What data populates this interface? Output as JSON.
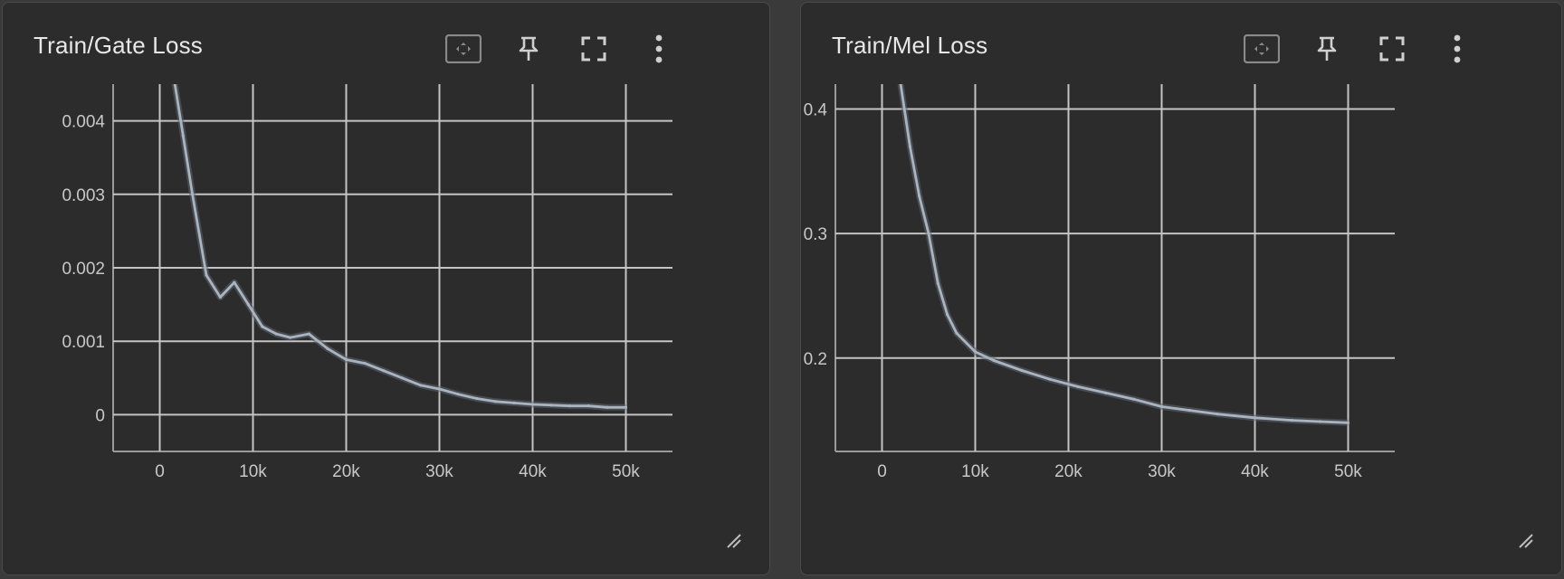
{
  "colors": {
    "background": "#3a3a3a",
    "card": "#2c2c2c",
    "grid": "#c4c4c4",
    "axis": "#9a9a9a",
    "smoothed_line": "#aab4c0",
    "raw_line": "#5f6670",
    "tick_text": "#c8c8c8"
  },
  "toolbar_icons": [
    "fit-domain-icon",
    "pin-icon",
    "fullscreen-icon",
    "more-vert-icon"
  ],
  "chart_data": [
    {
      "type": "line",
      "title": "Train/Gate Loss",
      "xlabel": "",
      "ylabel": "",
      "xlim": [
        -5000,
        55000
      ],
      "ylim": [
        -0.0005,
        0.0045
      ],
      "x_ticks": [
        0,
        10000,
        20000,
        30000,
        40000,
        50000
      ],
      "x_tick_labels": [
        "0",
        "10k",
        "20k",
        "30k",
        "40k",
        "50k"
      ],
      "y_ticks": [
        0,
        0.001,
        0.002,
        0.003,
        0.004
      ],
      "y_tick_labels": [
        "0",
        "0.001",
        "0.002",
        "0.003",
        "0.004"
      ],
      "grid": true,
      "series": [
        {
          "x": [
            1500,
            2500,
            3500,
            5000,
            6500,
            8000,
            9500,
            11000,
            12500,
            14000,
            16000,
            18000,
            20000,
            22000,
            24000,
            26000,
            28000,
            30000,
            32000,
            34000,
            36000,
            38000,
            40000,
            42000,
            44000,
            46000,
            48000,
            50000
          ],
          "y": [
            0.0046,
            0.0038,
            0.003,
            0.0019,
            0.0016,
            0.0018,
            0.0015,
            0.0012,
            0.0011,
            0.00105,
            0.0011,
            0.0009,
            0.00075,
            0.0007,
            0.0006,
            0.0005,
            0.0004,
            0.00035,
            0.00028,
            0.00022,
            0.00018,
            0.00016,
            0.00014,
            0.00013,
            0.00012,
            0.00012,
            0.0001,
            0.0001
          ]
        }
      ]
    },
    {
      "type": "line",
      "title": "Train/Mel Loss",
      "xlabel": "",
      "ylabel": "",
      "xlim": [
        -5000,
        55000
      ],
      "ylim": [
        0.125,
        0.42
      ],
      "x_ticks": [
        0,
        10000,
        20000,
        30000,
        40000,
        50000
      ],
      "x_tick_labels": [
        "0",
        "10k",
        "20k",
        "30k",
        "40k",
        "50k"
      ],
      "y_ticks": [
        0.2,
        0.3,
        0.4
      ],
      "y_tick_labels": [
        "0.2",
        "0.3",
        "0.4"
      ],
      "grid": true,
      "series": [
        {
          "x": [
            2000,
            3000,
            4000,
            5000,
            6000,
            7000,
            8000,
            10000,
            12000,
            15000,
            18000,
            21000,
            24000,
            27000,
            30000,
            33000,
            36000,
            40000,
            44000,
            47000,
            50000
          ],
          "y": [
            0.42,
            0.37,
            0.33,
            0.3,
            0.26,
            0.235,
            0.22,
            0.205,
            0.198,
            0.19,
            0.183,
            0.177,
            0.172,
            0.167,
            0.161,
            0.158,
            0.155,
            0.152,
            0.15,
            0.149,
            0.148
          ]
        }
      ]
    }
  ]
}
